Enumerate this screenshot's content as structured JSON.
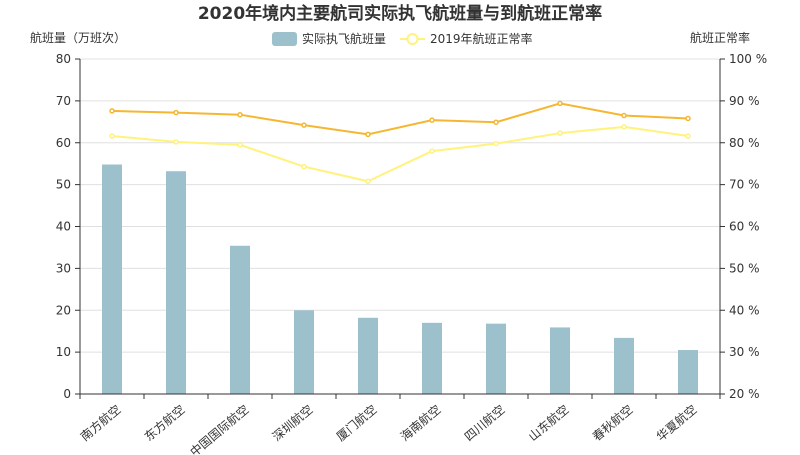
{
  "chart_data": {
    "type": "bar",
    "title": "2020年境内主要航司实际执飞航班量与到航班正常率",
    "categories": [
      "南方航空",
      "东方航空",
      "中国国际航空",
      "深圳航空",
      "厦门航空",
      "海南航空",
      "四川航空",
      "山东航空",
      "春秋航空",
      "华夏航空"
    ],
    "ylabel": "航班量（万班次）",
    "y2label": "航班正常率",
    "ylim": [
      0,
      80
    ],
    "yticks": [
      "0",
      "10",
      "20",
      "30",
      "40",
      "50",
      "60",
      "70",
      "80"
    ],
    "y2lim": [
      20,
      100
    ],
    "y2ticks": [
      "20 %",
      "30 %",
      "40 %",
      "50 %",
      "60 %",
      "70 %",
      "80 %",
      "90 %",
      "100 %"
    ],
    "grid": true,
    "legend_position": "top-center",
    "series": [
      {
        "name": "实际执飞航班量",
        "type": "bar",
        "axis": "left",
        "color": "#9dc1cc",
        "values": [
          54.8,
          53.2,
          35.4,
          20.0,
          18.2,
          17.0,
          16.8,
          15.9,
          13.4,
          10.5
        ]
      },
      {
        "name": "",
        "type": "line",
        "axis": "right",
        "color": "#f5b731",
        "values": [
          87.6,
          87.2,
          86.7,
          84.2,
          82.0,
          85.4,
          84.9,
          89.4,
          86.5,
          85.8
        ]
      },
      {
        "name": "2019年航班正常率",
        "type": "line",
        "axis": "right",
        "color": "#fff27d",
        "values": [
          81.6,
          80.2,
          79.5,
          74.3,
          70.8,
          78.0,
          79.8,
          82.3,
          83.8,
          81.6
        ]
      }
    ]
  }
}
